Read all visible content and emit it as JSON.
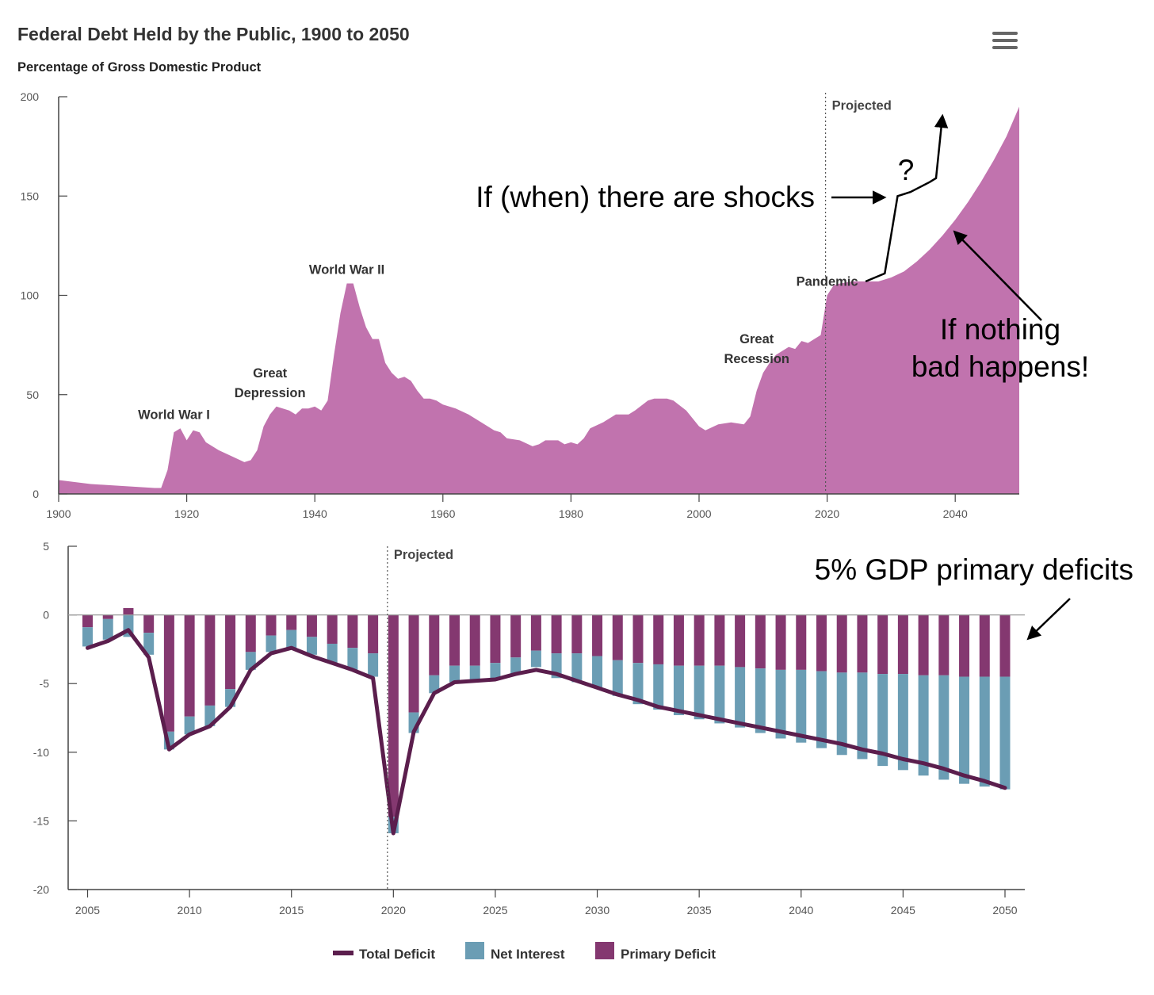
{
  "header": {
    "title": "Federal Debt Held by the Public, 1900 to 2050",
    "subtitle": "Percentage of Gross Domestic Product",
    "menu_icon": "hamburger-menu-icon"
  },
  "chart_data": [
    {
      "type": "area",
      "title": "Federal Debt Held by the Public, 1900 to 2050",
      "subtitle": "Percentage of Gross Domestic Product",
      "color": "#c173ae",
      "xlim": [
        1900,
        2050
      ],
      "ylim": [
        0,
        200
      ],
      "x_ticks": [
        1900,
        1920,
        1940,
        1960,
        1980,
        2000,
        2020,
        2040
      ],
      "y_ticks": [
        0,
        50,
        100,
        150,
        200
      ],
      "projected_from": 2020,
      "projected_label": "Projected",
      "points": [
        [
          1900,
          7
        ],
        [
          1905,
          5
        ],
        [
          1910,
          4
        ],
        [
          1915,
          3
        ],
        [
          1916,
          3
        ],
        [
          1917,
          12
        ],
        [
          1918,
          31
        ],
        [
          1919,
          33
        ],
        [
          1920,
          27
        ],
        [
          1921,
          32
        ],
        [
          1922,
          31
        ],
        [
          1923,
          26
        ],
        [
          1925,
          22
        ],
        [
          1927,
          19
        ],
        [
          1929,
          16
        ],
        [
          1930,
          17
        ],
        [
          1931,
          22
        ],
        [
          1932,
          34
        ],
        [
          1933,
          40
        ],
        [
          1934,
          44
        ],
        [
          1935,
          43
        ],
        [
          1936,
          42
        ],
        [
          1937,
          40
        ],
        [
          1938,
          43
        ],
        [
          1939,
          43
        ],
        [
          1940,
          44
        ],
        [
          1941,
          42
        ],
        [
          1942,
          47
        ],
        [
          1943,
          70
        ],
        [
          1944,
          91
        ],
        [
          1945,
          106
        ],
        [
          1946,
          106
        ],
        [
          1947,
          94
        ],
        [
          1948,
          84
        ],
        [
          1949,
          78
        ],
        [
          1950,
          78
        ],
        [
          1951,
          66
        ],
        [
          1952,
          61
        ],
        [
          1953,
          58
        ],
        [
          1954,
          59
        ],
        [
          1955,
          57
        ],
        [
          1956,
          52
        ],
        [
          1957,
          48
        ],
        [
          1958,
          48
        ],
        [
          1959,
          47
        ],
        [
          1960,
          45
        ],
        [
          1962,
          43
        ],
        [
          1964,
          40
        ],
        [
          1966,
          36
        ],
        [
          1968,
          32
        ],
        [
          1969,
          31
        ],
        [
          1970,
          28
        ],
        [
          1972,
          27
        ],
        [
          1974,
          24
        ],
        [
          1975,
          25
        ],
        [
          1976,
          27
        ],
        [
          1978,
          27
        ],
        [
          1979,
          25
        ],
        [
          1980,
          26
        ],
        [
          1981,
          25
        ],
        [
          1982,
          28
        ],
        [
          1983,
          33
        ],
        [
          1985,
          36
        ],
        [
          1987,
          40
        ],
        [
          1989,
          40
        ],
        [
          1990,
          42
        ],
        [
          1992,
          47
        ],
        [
          1993,
          48
        ],
        [
          1995,
          48
        ],
        [
          1996,
          47
        ],
        [
          1998,
          42
        ],
        [
          2000,
          34
        ],
        [
          2001,
          32
        ],
        [
          2003,
          35
        ],
        [
          2005,
          36
        ],
        [
          2007,
          35
        ],
        [
          2008,
          39
        ],
        [
          2009,
          52
        ],
        [
          2010,
          61
        ],
        [
          2011,
          66
        ],
        [
          2012,
          70
        ],
        [
          2013,
          72
        ],
        [
          2014,
          74
        ],
        [
          2015,
          73
        ],
        [
          2016,
          77
        ],
        [
          2017,
          76
        ],
        [
          2018,
          78
        ],
        [
          2019,
          80
        ],
        [
          2020,
          100
        ],
        [
          2021,
          105
        ],
        [
          2022,
          106
        ],
        [
          2024,
          107
        ],
        [
          2026,
          107
        ],
        [
          2028,
          107
        ],
        [
          2030,
          109
        ],
        [
          2032,
          112
        ],
        [
          2034,
          117
        ],
        [
          2036,
          123
        ],
        [
          2038,
          130
        ],
        [
          2040,
          138
        ],
        [
          2042,
          147
        ],
        [
          2044,
          157
        ],
        [
          2046,
          168
        ],
        [
          2048,
          180
        ],
        [
          2050,
          195
        ]
      ],
      "event_labels": [
        {
          "lines": [
            "World War I"
          ],
          "year": 1918,
          "value": 33
        },
        {
          "lines": [
            "Great",
            "Depression"
          ],
          "year": 1933,
          "value": 44
        },
        {
          "lines": [
            "World War II"
          ],
          "year": 1945,
          "value": 106
        },
        {
          "lines": [
            "Great",
            "Recession"
          ],
          "year": 2009,
          "value": 61
        },
        {
          "lines": [
            "Pandemic"
          ],
          "year": 2020,
          "value": 100
        }
      ],
      "annotations": {
        "shocks": "If (when) there are shocks",
        "question": "?",
        "nothing_bad": [
          "If nothing",
          "bad happens!"
        ]
      },
      "shock_path": [
        [
          2026,
          107
        ],
        [
          2029,
          111
        ],
        [
          2031,
          150
        ],
        [
          2033,
          152
        ],
        [
          2036,
          157
        ],
        [
          2037,
          159
        ],
        [
          2038,
          190
        ]
      ]
    },
    {
      "type": "bar",
      "stacked": true,
      "ylim": [
        -20,
        5
      ],
      "y_ticks": [
        5,
        0,
        -5,
        -10,
        -15,
        -20
      ],
      "x_ticks": [
        2005,
        2010,
        2015,
        2020,
        2025,
        2030,
        2035,
        2040,
        2045,
        2050
      ],
      "projected_from": 2020,
      "projected_label": "Projected",
      "annotation": "5% GDP primary deficits",
      "years": [
        2005,
        2006,
        2007,
        2008,
        2009,
        2010,
        2011,
        2012,
        2013,
        2014,
        2015,
        2016,
        2017,
        2018,
        2019,
        2020,
        2021,
        2022,
        2023,
        2024,
        2025,
        2026,
        2027,
        2028,
        2029,
        2030,
        2031,
        2032,
        2033,
        2034,
        2035,
        2036,
        2037,
        2038,
        2039,
        2040,
        2041,
        2042,
        2043,
        2044,
        2045,
        2046,
        2047,
        2048,
        2049,
        2050
      ],
      "series": [
        {
          "name": "Total Deficit",
          "type": "line",
          "color": "#5b1e4d",
          "values": [
            -2.4,
            -1.9,
            -1.1,
            -3.1,
            -9.8,
            -8.7,
            -8.1,
            -6.7,
            -4.0,
            -2.8,
            -2.4,
            -3.0,
            -3.5,
            -4.0,
            -4.6,
            -15.9,
            -8.5,
            -5.7,
            -4.9,
            -4.8,
            -4.7,
            -4.3,
            -4.0,
            -4.3,
            -4.8,
            -5.3,
            -5.8,
            -6.2,
            -6.7,
            -7.0,
            -7.3,
            -7.6,
            -7.9,
            -8.2,
            -8.5,
            -8.8,
            -9.1,
            -9.4,
            -9.8,
            -10.1,
            -10.5,
            -10.8,
            -11.2,
            -11.7,
            -12.1,
            -12.6
          ]
        },
        {
          "name": "Net Interest",
          "color": "#6b9db4",
          "values": [
            -1.4,
            -1.5,
            -1.6,
            -1.6,
            -1.3,
            -1.3,
            -1.5,
            -1.3,
            -1.3,
            -1.2,
            -1.3,
            -1.3,
            -1.4,
            -1.6,
            -1.7,
            -1.2,
            -1.5,
            -1.3,
            -1.2,
            -1.1,
            -1.1,
            -1.2,
            -1.2,
            -1.8,
            -2.1,
            -2.3,
            -2.6,
            -3.0,
            -3.3,
            -3.6,
            -3.9,
            -4.2,
            -4.4,
            -4.7,
            -5.0,
            -5.3,
            -5.6,
            -6.0,
            -6.3,
            -6.7,
            -7.0,
            -7.3,
            -7.6,
            -7.8,
            -8.0,
            -8.2
          ]
        },
        {
          "name": "Primary Deficit",
          "color": "#843870",
          "values": [
            -0.9,
            -0.3,
            0.5,
            -1.3,
            -8.5,
            -7.4,
            -6.6,
            -5.4,
            -2.7,
            -1.5,
            -1.1,
            -1.6,
            -2.1,
            -2.4,
            -2.8,
            -14.7,
            -7.1,
            -4.4,
            -3.7,
            -3.7,
            -3.5,
            -3.1,
            -2.6,
            -2.8,
            -2.8,
            -3.0,
            -3.3,
            -3.5,
            -3.6,
            -3.7,
            -3.7,
            -3.7,
            -3.8,
            -3.9,
            -4.0,
            -4.0,
            -4.1,
            -4.2,
            -4.2,
            -4.3,
            -4.3,
            -4.4,
            -4.4,
            -4.5,
            -4.5,
            -4.5
          ]
        }
      ]
    }
  ],
  "legend": {
    "total_deficit": "Total Deficit",
    "net_interest": "Net Interest",
    "primary_deficit": "Primary Deficit"
  }
}
